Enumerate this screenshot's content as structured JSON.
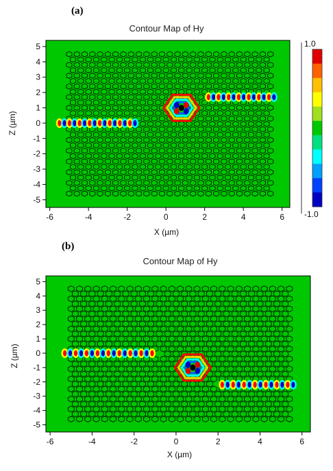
{
  "chart_data": [
    {
      "type": "heatmap",
      "panel_label": "(a)",
      "title": "Contour Map of Hy",
      "xlabel": "X (µm)",
      "ylabel": "Z (µm)",
      "xlim": [
        -6.2,
        6.4
      ],
      "ylim": [
        -5.5,
        5.4
      ],
      "x_ticks": [
        -6,
        -4,
        -2,
        0,
        2,
        4,
        6
      ],
      "y_ticks": [
        5,
        4,
        3,
        2,
        1,
        0,
        -1,
        -2,
        -3,
        -4,
        -5
      ],
      "colorbar": {
        "max_label": "1.0",
        "min_label": "-1.0",
        "range": [
          -1.0,
          1.0
        ],
        "colors": [
          "#e00000",
          "#ff6000",
          "#ffc000",
          "#ffff00",
          "#a0e020",
          "#00c800",
          "#00e080",
          "#00ffff",
          "#00a0ff",
          "#0040ff",
          "#0000c0"
        ]
      },
      "background_color": "#00c800",
      "lattice": {
        "x_range": [
          -5.0,
          5.5
        ],
        "z_range": [
          -4.6,
          4.6
        ],
        "row_spacing": 0.35,
        "col_spacing": 0.4
      },
      "field_features": [
        {
          "kind": "waveguide",
          "x": [
            -5.5,
            -1.5
          ],
          "z": 0.0
        },
        {
          "kind": "cavity",
          "x": 0.8,
          "z": 1.0
        },
        {
          "kind": "waveguide",
          "x": [
            2.2,
            5.8
          ],
          "z": 1.7
        }
      ]
    },
    {
      "type": "heatmap",
      "panel_label": "(b)",
      "title": "Contour Map of Hy",
      "xlabel": "X (µm)",
      "ylabel": "Z (µm)",
      "xlim": [
        -6.2,
        6.4
      ],
      "ylim": [
        -5.5,
        5.4
      ],
      "x_ticks": [
        -6,
        -4,
        -2,
        0,
        2,
        4,
        6
      ],
      "y_ticks": [
        5,
        4,
        3,
        2,
        1,
        0,
        -1,
        -2,
        -3,
        -4,
        -5
      ],
      "background_color": "#00c800",
      "lattice": {
        "x_range": [
          -5.0,
          5.5
        ],
        "z_range": [
          -4.6,
          4.6
        ],
        "row_spacing": 0.35,
        "col_spacing": 0.4
      },
      "field_features": [
        {
          "kind": "waveguide",
          "x": [
            -5.3,
            -1.0
          ],
          "z": 0.0
        },
        {
          "kind": "cavity",
          "x": 0.8,
          "z": -1.0
        },
        {
          "kind": "waveguide",
          "x": [
            2.2,
            5.8
          ],
          "z": -2.2
        }
      ]
    }
  ]
}
